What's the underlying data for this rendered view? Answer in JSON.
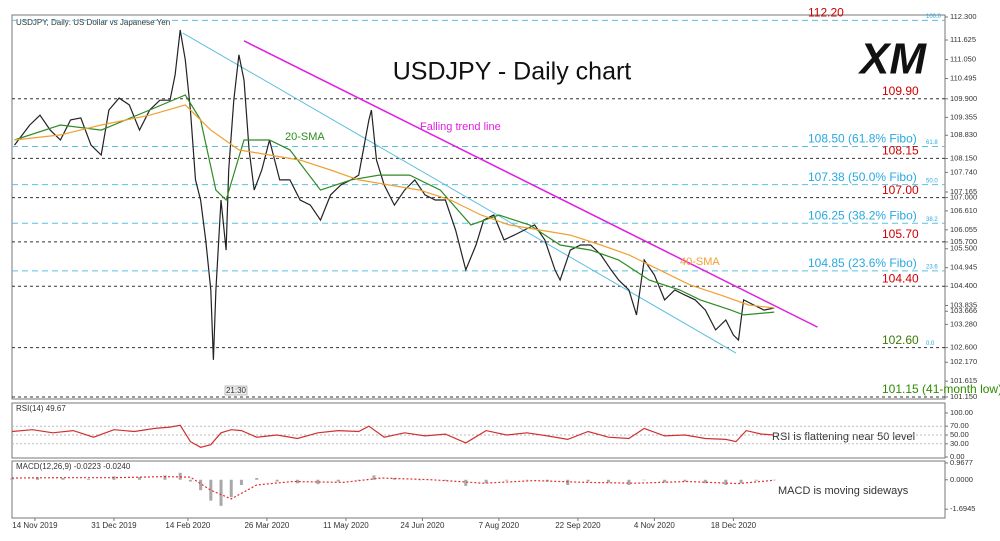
{
  "chart_data": [
    {
      "type": "line",
      "title": "USDJPY - Daily chart",
      "subtitle": "USDJPY, Daily: US Dollar vs Japanese Yen",
      "logo": "XM",
      "time_label": "21:30",
      "xlim": [
        0,
        366
      ],
      "ylim": [
        101.15,
        112.3
      ],
      "yticks": [
        {
          "value": 112.3,
          "label": "112.300"
        },
        111.625,
        {
          "value": 111.05,
          "label": "111.050"
        },
        110.495,
        {
          "value": 109.9,
          "label": "109.900"
        },
        109.355,
        {
          "value": 108.83,
          "label": "108.830"
        },
        {
          "value": 108.15,
          "label": "108.150"
        },
        {
          "value": 107.74,
          "label": "107.740"
        },
        107.165,
        {
          "value": 107,
          "label": "107.000"
        },
        {
          "value": 106.61,
          "label": "106.610"
        },
        106.055,
        {
          "value": 105.7,
          "label": "105.700"
        },
        {
          "value": 105.5,
          "label": "105.500"
        },
        104.945,
        {
          "value": 104.4,
          "label": "104.400"
        },
        103.835,
        103.666,
        {
          "value": 103.28,
          "label": "103.280"
        },
        {
          "value": 102.6,
          "label": "102.600"
        },
        {
          "value": 102.17,
          "label": "102.170"
        },
        101.615,
        {
          "value": 101.15,
          "label": "101.150"
        }
      ],
      "series": [
        {
          "color": "#222222",
          "x": [
            1,
            7,
            11,
            15,
            19,
            23,
            27,
            31,
            35,
            38,
            42,
            46,
            50,
            54,
            58,
            62,
            64,
            66,
            68,
            70,
            72,
            74,
            76,
            78,
            79,
            80,
            82,
            84,
            85,
            87,
            89,
            91,
            93,
            95,
            98,
            101,
            105,
            109,
            113,
            117,
            121,
            125,
            129,
            133,
            136,
            140,
            141,
            143,
            146,
            150,
            154,
            158,
            162,
            166,
            170,
            174,
            178,
            182,
            185,
            189,
            193,
            197,
            201,
            205,
            209,
            213,
            215,
            219,
            223,
            227,
            231,
            235,
            238,
            242,
            245,
            248,
            252,
            256,
            260,
            264,
            268,
            272,
            276,
            280,
            283,
            285,
            287,
            291,
            295,
            299
          ],
          "values": [
            108.54,
            109.13,
            109.42,
            108.98,
            108.69,
            109.28,
            109.34,
            108.54,
            108.25,
            109.57,
            109.92,
            109.72,
            108.98,
            109.57,
            109.86,
            109.86,
            110.6,
            111.92,
            111.04,
            109.57,
            107.52,
            106.93,
            105.76,
            104.29,
            102.24,
            104.29,
            106.93,
            105.46,
            107.81,
            109.86,
            111.19,
            110.45,
            108.4,
            107.22,
            107.81,
            108.69,
            107.52,
            107.52,
            106.93,
            106.78,
            106.34,
            107.08,
            107.37,
            107.52,
            107.66,
            109.28,
            109.57,
            108.1,
            107.37,
            106.78,
            107.22,
            107.52,
            107.08,
            106.93,
            106.93,
            106.05,
            104.88,
            105.61,
            106.34,
            106.49,
            105.76,
            105.9,
            106.05,
            106.2,
            105.76,
            104.88,
            104.58,
            105.46,
            105.61,
            105.61,
            105.32,
            104.88,
            104.58,
            104.29,
            103.56,
            105.17,
            104.73,
            104,
            104.29,
            104.14,
            104,
            103.7,
            103.12,
            103.41,
            102.97,
            102.82,
            104,
            103.85,
            103.7,
            103.76
          ]
        },
        {
          "name": "20-SMA",
          "color": "#2e8b22",
          "x": [
            1,
            19,
            35,
            54,
            68,
            74,
            80,
            84,
            91,
            101,
            109,
            121,
            133,
            144,
            156,
            168,
            180,
            191,
            203,
            215,
            227,
            238,
            250,
            262,
            270,
            282,
            287,
            299
          ],
          "values": [
            108.69,
            109.13,
            108.98,
            109.57,
            110.01,
            109.28,
            107.22,
            106.93,
            108.69,
            108.69,
            108.4,
            107.22,
            107.52,
            107.66,
            107.66,
            107.22,
            106.2,
            106.49,
            106.2,
            105.61,
            105.46,
            105.17,
            104.58,
            104.29,
            104,
            103.7,
            103.56,
            103.64
          ]
        },
        {
          "name": "40-SMA",
          "color": "#f0a030",
          "x": [
            1,
            19,
            35,
            54,
            68,
            78,
            89,
            101,
            113,
            125,
            136,
            148,
            160,
            172,
            184,
            195,
            207,
            219,
            231,
            242,
            254,
            266,
            278,
            289,
            299
          ],
          "values": [
            108.69,
            108.84,
            109.13,
            109.42,
            109.72,
            108.98,
            108.4,
            108.25,
            108.1,
            107.81,
            107.52,
            107.37,
            107.22,
            106.93,
            106.49,
            106.2,
            106.05,
            105.9,
            105.61,
            105.32,
            104.88,
            104.44,
            104.14,
            103.85,
            103.76
          ]
        }
      ],
      "trend_lines": [
        {
          "name": "Falling trend line",
          "color": "#e020e0",
          "x": [
            91,
            316
          ],
          "values": [
            111.6,
            103.2
          ]
        },
        {
          "color": "#5bc0de",
          "x": [
            67,
            284
          ],
          "values": [
            111.83,
            102.44
          ]
        }
      ],
      "levels": [
        {
          "value": 112.2,
          "label": "112.20",
          "color": "#d00000",
          "line": "fibo",
          "tag": "100.0"
        },
        {
          "value": 109.9,
          "label": "109.90",
          "color": "#d00000",
          "line": "level"
        },
        {
          "value": 108.5,
          "label": "108.50 (61.8% Fibo)",
          "color": "#29a9e0",
          "line": "fibo",
          "tag": "61.8"
        },
        {
          "value": 108.15,
          "label": "108.15",
          "color": "#d00000",
          "line": "level"
        },
        {
          "value": 107.38,
          "label": "107.38 (50.0% Fibo)",
          "color": "#29a9e0",
          "line": "fibo",
          "tag": "50.0"
        },
        {
          "value": 107,
          "label": "107.00",
          "color": "#d00000",
          "line": "level"
        },
        {
          "value": 106.25,
          "label": "106.25 (38.2% Fibo)",
          "color": "#29a9e0",
          "line": "fibo",
          "tag": "38.2"
        },
        {
          "value": 105.7,
          "label": "105.70",
          "color": "#d00000",
          "line": "level"
        },
        {
          "value": 104.85,
          "label": "104.85 (23.6% Fibo)",
          "color": "#29a9e0",
          "line": "fibo",
          "tag": "23.6"
        },
        {
          "value": 104.4,
          "label": "104.40",
          "color": "#d00000",
          "line": "level"
        },
        {
          "value": 102.6,
          "label": "102.60",
          "color": "#3a7a00",
          "line": "level",
          "tag": "0.0"
        },
        {
          "value": 101.15,
          "label": "101.15 (41-month low)",
          "color": "#2e8b00",
          "line": "level"
        }
      ]
    },
    {
      "type": "line",
      "title": "RSI(14) 49.67",
      "annotation": "RSI is flattening near 50 level",
      "xlim": [
        0,
        366
      ],
      "ylim": [
        0,
        100
      ],
      "yticks": [
        {
          "value": 100,
          "label": "100.00"
        },
        {
          "value": 70,
          "label": "70.00"
        },
        {
          "value": 50,
          "label": "50.00"
        },
        {
          "value": 30,
          "label": "30.00"
        },
        {
          "value": 0,
          "label": "0.00"
        }
      ],
      "series": [
        {
          "color": "#d03030",
          "x": [
            0,
            8,
            16,
            24,
            32,
            40,
            48,
            56,
            62,
            66,
            70,
            74,
            78,
            82,
            86,
            90,
            96,
            104,
            112,
            120,
            128,
            136,
            140,
            146,
            154,
            162,
            170,
            178,
            186,
            194,
            202,
            210,
            218,
            226,
            234,
            242,
            248,
            256,
            264,
            272,
            280,
            284,
            288,
            294,
            299
          ],
          "values": [
            58,
            62,
            55,
            60,
            45,
            62,
            58,
            65,
            68,
            72,
            35,
            22,
            28,
            55,
            62,
            60,
            45,
            50,
            42,
            55,
            60,
            58,
            70,
            45,
            55,
            48,
            52,
            32,
            60,
            50,
            55,
            48,
            40,
            58,
            45,
            42,
            65,
            48,
            50,
            42,
            40,
            35,
            60,
            52,
            50
          ]
        }
      ]
    },
    {
      "type": "bar",
      "title": "MACD(12,26,9) -0.0223 -0.0240",
      "annotation": "MACD is moving sideways",
      "xlim": [
        0,
        366
      ],
      "ylim": [
        -2.2,
        1.08
      ],
      "yticks": [
        0.9677,
        {
          "value": 0,
          "label": "0.0000"
        },
        -1.6945
      ],
      "xticks": [
        {
          "value": 9,
          "label": "14 Nov 2019"
        },
        {
          "value": 40,
          "label": "31 Dec 2019"
        },
        {
          "value": 69,
          "label": "14 Feb 2020"
        },
        {
          "value": 100,
          "label": "26 Mar 2020"
        },
        {
          "value": 131,
          "label": "11 May 2020"
        },
        {
          "value": 161,
          "label": "24 Jun 2020"
        },
        {
          "value": 191,
          "label": "7 Aug 2020"
        },
        {
          "value": 222,
          "label": "22 Sep 2020"
        },
        {
          "value": 252,
          "label": "4 Nov 2020"
        },
        {
          "value": 283,
          "label": "18 Dec 2020"
        }
      ],
      "series": [
        {
          "color": "#a8a8a8",
          "x": [
            0,
            10,
            20,
            30,
            40,
            50,
            60,
            66,
            70,
            74,
            78,
            82,
            86,
            90,
            96,
            104,
            112,
            120,
            128,
            136,
            142,
            150,
            160,
            170,
            178,
            186,
            194,
            202,
            210,
            218,
            226,
            234,
            242,
            248,
            256,
            264,
            272,
            280,
            286,
            292,
            299
          ],
          "values": [
            0.1,
            0.15,
            0.1,
            0.05,
            0.2,
            0.15,
            0.25,
            0.4,
            -0.1,
            -0.6,
            -1.2,
            -1.5,
            -1.0,
            -0.3,
            0.1,
            -0.1,
            -0.2,
            -0.25,
            -0.1,
            0,
            0.25,
            0.1,
            0,
            -0.05,
            -0.35,
            -0.2,
            -0.05,
            0,
            -0.1,
            -0.3,
            -0.1,
            -0.15,
            -0.3,
            0,
            -0.15,
            -0.1,
            -0.2,
            -0.3,
            -0.2,
            -0.05,
            -0.02
          ]
        },
        {
          "color": "#e03030",
          "style": "dotted",
          "x": [
            0,
            20,
            40,
            60,
            70,
            78,
            86,
            96,
            110,
            130,
            145,
            165,
            185,
            205,
            225,
            245,
            265,
            285,
            299
          ],
          "values": [
            0.1,
            0.12,
            0.12,
            0.18,
            0.15,
            -0.6,
            -1.1,
            -0.3,
            -0.1,
            -0.15,
            0.1,
            0,
            -0.2,
            -0.05,
            -0.15,
            -0.2,
            -0.1,
            -0.22,
            -0.024
          ]
        }
      ]
    }
  ]
}
